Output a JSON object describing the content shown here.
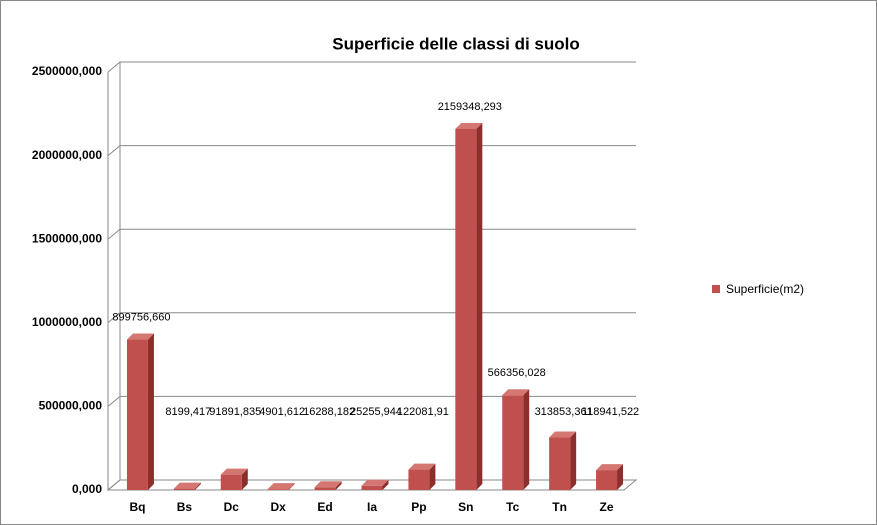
{
  "chart_data": {
    "type": "bar3d",
    "title": "Superficie delle classi di suolo",
    "categories": [
      "Bq",
      "Bs",
      "Dc",
      "Dx",
      "Ed",
      "Ia",
      "Pp",
      "Sn",
      "Tc",
      "Tn",
      "Ze"
    ],
    "series": [
      {
        "name": "Superficie(m2)",
        "color": "#c0504d",
        "values": [
          899756.66,
          8199.417,
          91891.835,
          4901.612,
          16288.182,
          25255.944,
          122081.91,
          2159348.293,
          566356.028,
          313853.361,
          118941.522
        ],
        "value_labels": [
          "899756,660",
          "8199,417",
          "91891,835",
          "4901,612",
          "16288,182",
          "25255,944",
          "122081,91",
          "2159348,293",
          "566356,028",
          "313853,361",
          "118941,522"
        ]
      }
    ],
    "ylim": [
      0,
      2500000
    ],
    "yticks": [
      {
        "value": 0,
        "label": "0,000"
      },
      {
        "value": 500000,
        "label": "500000,000"
      },
      {
        "value": 1000000,
        "label": "1000000,000"
      },
      {
        "value": 1500000,
        "label": "1500000,000"
      },
      {
        "value": 2000000,
        "label": "2000000,000"
      },
      {
        "value": 2500000,
        "label": "2500000,000"
      }
    ],
    "grid": true,
    "legend": "right"
  }
}
